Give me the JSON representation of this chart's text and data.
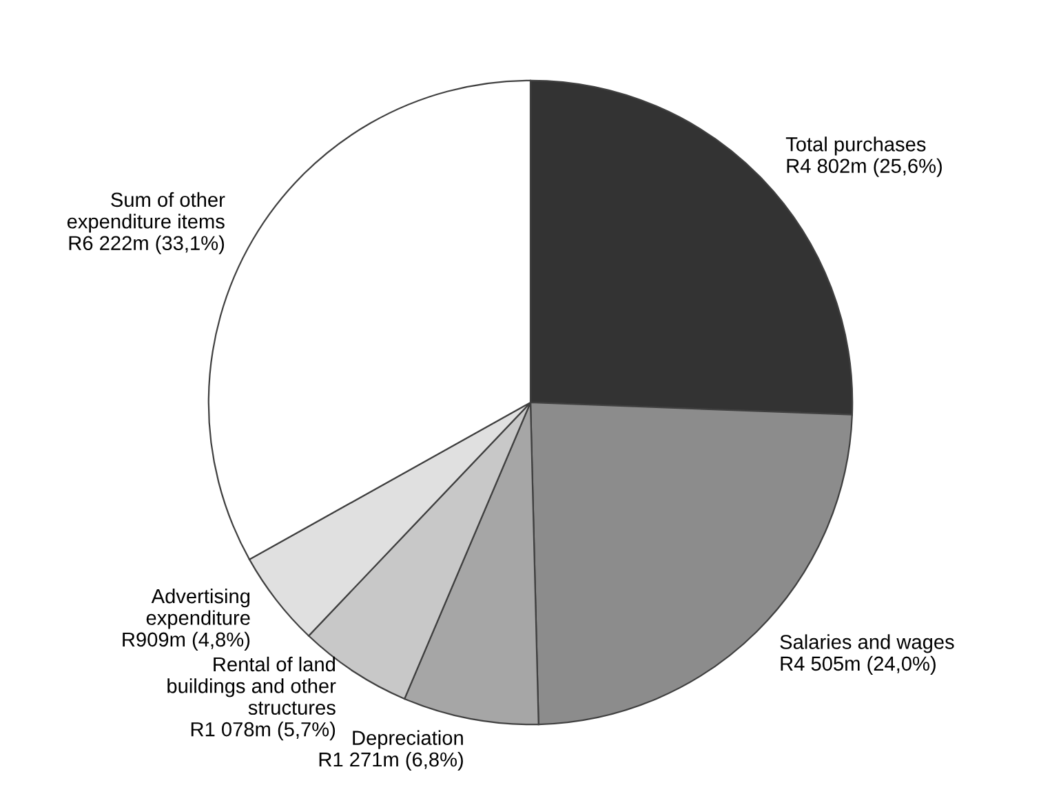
{
  "chart_data": {
    "type": "pie",
    "categories": [
      "Total purchases",
      "Salaries and wages",
      "Depreciation",
      "Rental of land\nbuildings and other\nstructures",
      "Advertising\nexpenditure",
      "Sum of other\nexpenditure items"
    ],
    "values": [
      25.6,
      24.0,
      6.8,
      5.7,
      4.8,
      33.1
    ],
    "value_labels": [
      "R4 802m (25,6%)",
      "R4 505m (24,0%)",
      "R1 271m (6,8%)",
      "R1 078m (5,7%)",
      "R909m (4,8%)",
      "R6 222m (33,1%)"
    ],
    "colors": [
      "#333333",
      "#8c8c8c",
      "#a6a6a6",
      "#c8c8c8",
      "#e0e0e0",
      "#ffffff"
    ],
    "legend": false
  }
}
